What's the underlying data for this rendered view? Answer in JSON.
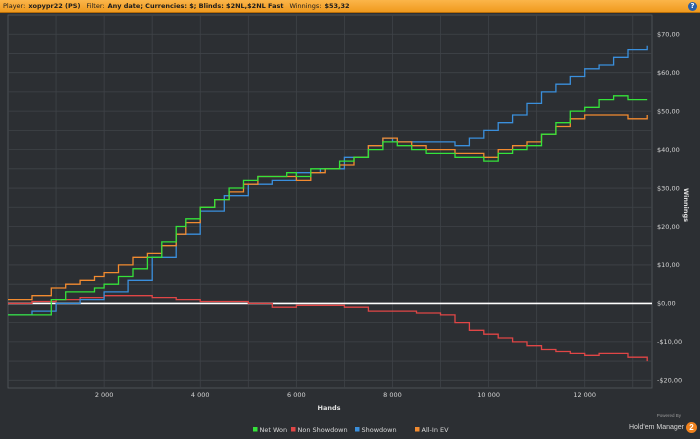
{
  "header": {
    "player_label": "Player:",
    "player_value": "xopypr22 (PS)",
    "filter_label": "Filter:",
    "filter_value": "Any date; Currencies: $; Blinds: $2NL,$2NL Fast",
    "winnings_label": "Winnings:",
    "winnings_value": "$53,32",
    "help_icon": "?"
  },
  "brand": {
    "powered_by": "Powered By",
    "name": "Hold'em Manager",
    "number": "2"
  },
  "colors": {
    "background": "#2c2f33",
    "grid": "#3f4348",
    "zero_line": "#ffffff",
    "net_won": "#35e23a",
    "non_showdown": "#e04646",
    "showdown": "#3a8fdc",
    "all_in_ev": "#f28b30"
  },
  "chart_data": {
    "type": "line",
    "title": "",
    "xlabel": "Hands",
    "ylabel": "Winnings",
    "xlim": [
      0,
      13400
    ],
    "ylim": [
      -22,
      75
    ],
    "x_ticks": [
      2000,
      4000,
      6000,
      8000,
      10000,
      12000
    ],
    "x_tick_labels": [
      "2 000",
      "4 000",
      "6 000",
      "8 000",
      "10 000",
      "12 000"
    ],
    "y_ticks": [
      -20,
      -10,
      0,
      10,
      20,
      30,
      40,
      50,
      60,
      70
    ],
    "y_tick_labels": [
      "-$20,00",
      "-$10,00",
      "$0,00",
      "$10,00",
      "$20,00",
      "$30,00",
      "$40,00",
      "$50,00",
      "$60,00",
      "$70,00"
    ],
    "grid": true,
    "legend_position": "bottom-center",
    "series": [
      {
        "name": "Net Won",
        "color": "#35e23a",
        "x": [
          0,
          500,
          900,
          1200,
          1500,
          1800,
          2000,
          2300,
          2600,
          2900,
          3200,
          3500,
          3700,
          4000,
          4300,
          4600,
          4900,
          5200,
          5500,
          5800,
          6000,
          6300,
          6600,
          6900,
          7200,
          7500,
          7800,
          8100,
          8400,
          8700,
          9000,
          9300,
          9600,
          9900,
          10200,
          10500,
          10800,
          11100,
          11400,
          11700,
          12000,
          12300,
          12600,
          12900,
          13300
        ],
        "y": [
          -3,
          -3,
          1,
          3,
          3,
          4,
          5,
          7,
          9,
          12,
          16,
          20,
          22,
          25,
          27,
          30,
          32,
          33,
          33,
          34,
          33,
          35,
          35,
          37,
          38,
          40,
          42,
          41,
          40,
          39,
          39,
          38,
          38,
          37,
          39,
          40,
          41,
          44,
          47,
          50,
          51,
          53,
          54,
          53,
          53
        ]
      },
      {
        "name": "Non Showdown",
        "color": "#e04646",
        "x": [
          0,
          500,
          1000,
          1500,
          2000,
          2500,
          3000,
          3500,
          4000,
          4500,
          5000,
          5500,
          6000,
          6500,
          7000,
          7500,
          8000,
          8500,
          9000,
          9300,
          9600,
          9900,
          10200,
          10500,
          10800,
          11100,
          11400,
          11700,
          12000,
          12300,
          12600,
          12900,
          13300
        ],
        "y": [
          0,
          0.5,
          1,
          1.5,
          2,
          2,
          1.5,
          1,
          0.5,
          0.5,
          0,
          -1,
          -0.5,
          -0.5,
          -1,
          -2,
          -2,
          -2.5,
          -3,
          -5,
          -7,
          -8,
          -9,
          -10,
          -11,
          -12,
          -12.5,
          -13,
          -13.5,
          -13,
          -13,
          -14,
          -15
        ]
      },
      {
        "name": "Showdown",
        "color": "#3a8fdc",
        "x": [
          0,
          500,
          1000,
          1500,
          2000,
          2500,
          3000,
          3500,
          4000,
          4500,
          5000,
          5500,
          6000,
          6500,
          7000,
          7500,
          7800,
          8000,
          8500,
          9000,
          9300,
          9600,
          9900,
          10200,
          10500,
          10800,
          11100,
          11400,
          11700,
          12000,
          12300,
          12600,
          12900,
          13300
        ],
        "y": [
          -3,
          -2,
          0,
          1,
          3,
          6,
          12,
          18,
          24,
          28,
          31,
          32,
          34,
          35,
          38,
          41,
          43,
          42,
          42,
          42,
          41,
          43,
          45,
          47,
          49,
          52,
          55,
          57,
          59,
          61,
          62,
          64,
          66,
          67
        ]
      },
      {
        "name": "All-In EV",
        "color": "#f28b30",
        "x": [
          0,
          500,
          900,
          1200,
          1500,
          1800,
          2000,
          2300,
          2600,
          2900,
          3200,
          3500,
          3700,
          4000,
          4300,
          4600,
          4900,
          5200,
          5500,
          5800,
          6000,
          6300,
          6600,
          6900,
          7200,
          7500,
          7800,
          8100,
          8400,
          8700,
          9000,
          9300,
          9600,
          9900,
          10200,
          10500,
          10800,
          11100,
          11400,
          11700,
          12000,
          12300,
          12600,
          12900,
          13300
        ],
        "y": [
          1,
          2,
          4,
          5,
          6,
          7,
          8,
          10,
          12,
          13,
          15,
          18,
          21,
          25,
          27,
          29,
          31,
          33,
          33,
          33,
          32,
          34,
          35,
          36,
          38,
          41,
          43,
          42,
          41,
          40,
          40,
          39,
          39,
          38,
          40,
          41,
          42,
          44,
          46,
          48,
          49,
          49,
          49,
          48,
          49
        ]
      }
    ]
  }
}
